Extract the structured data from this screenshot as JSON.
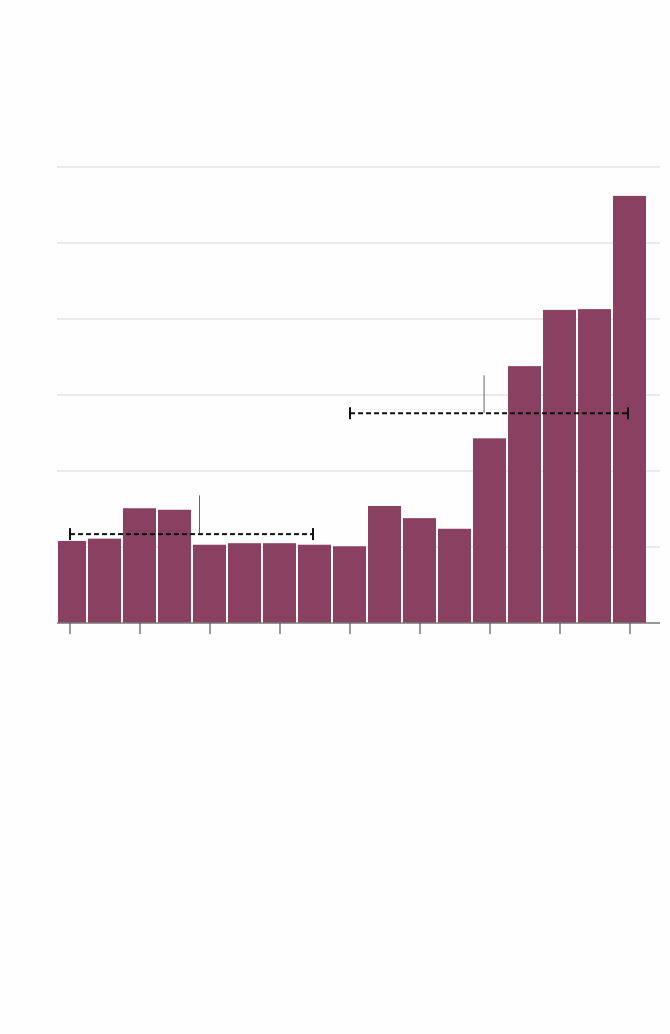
{
  "chart_data": {
    "type": "bar",
    "title": "",
    "xlabel": "",
    "ylabel": "",
    "x": [
      0,
      1,
      2,
      3,
      4,
      5,
      6,
      7,
      8,
      9,
      10,
      11,
      12,
      13,
      14,
      15,
      16
    ],
    "values": [
      1.08,
      1.11,
      1.51,
      1.49,
      1.03,
      1.05,
      1.05,
      1.03,
      1.01,
      1.54,
      1.38,
      1.24,
      2.43,
      3.38,
      4.12,
      4.13,
      5.62
    ],
    "ylim": [
      0,
      6
    ],
    "yticks": [
      0,
      1,
      2,
      3,
      4,
      5,
      6
    ],
    "xticks": [
      0,
      2,
      4,
      6,
      8,
      10,
      12,
      14,
      16
    ],
    "grid": true,
    "colors": {
      "bar": "#8a4161",
      "grid": "#d6d6d6",
      "axis": "#777777",
      "annotation": "#111111"
    },
    "annotations": [
      {
        "type": "mean-range",
        "x_start": 0,
        "x_end": 7,
        "y": 1.17,
        "marker_x": 3.7,
        "marker_top": 1.68
      },
      {
        "type": "mean-range",
        "x_start": 8,
        "x_end": 16,
        "y": 2.76,
        "marker_x": 11.83,
        "marker_top": 3.26
      }
    ]
  }
}
